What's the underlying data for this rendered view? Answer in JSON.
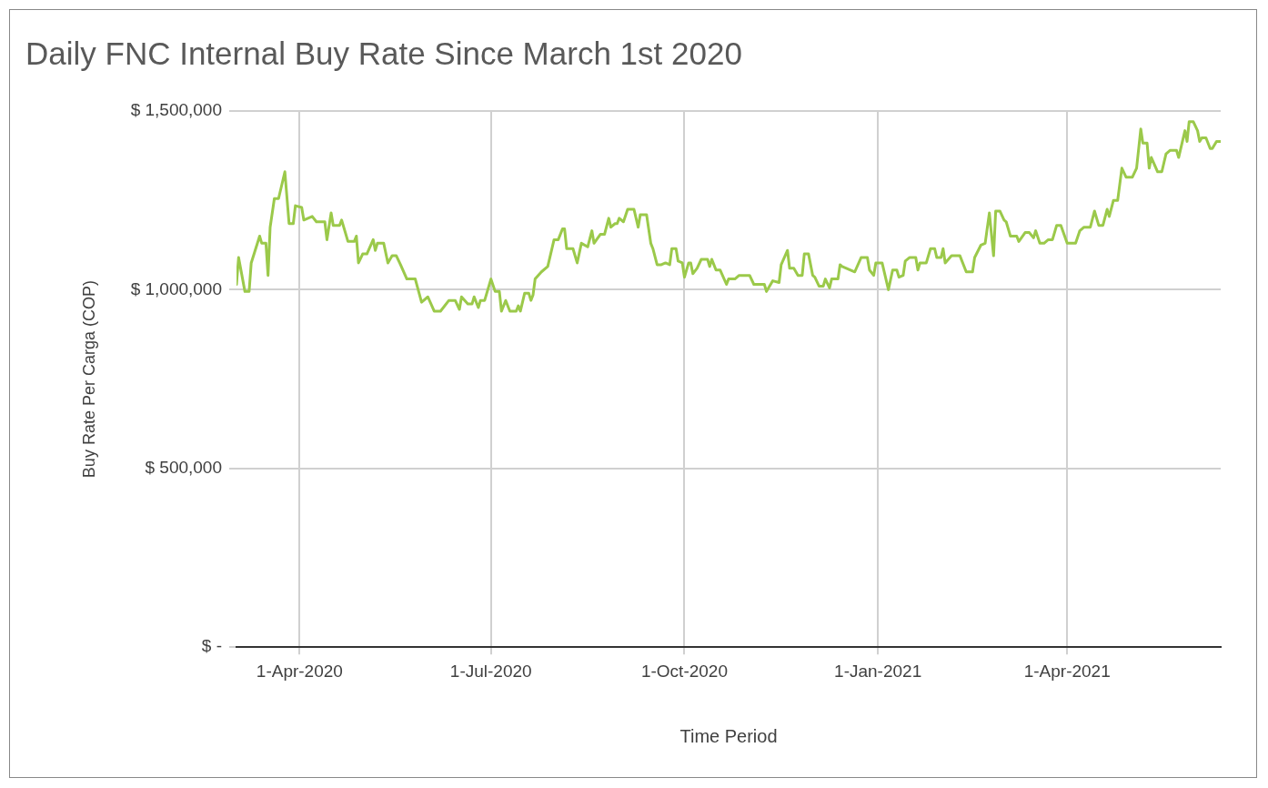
{
  "chart_data": {
    "type": "line",
    "title": "Daily FNC Internal Buy Rate Since March 1st 2020",
    "xlabel": "Time Period",
    "ylabel": "Buy Rate Per Carga (COP)",
    "x": [
      "2020-03-02",
      "2020-03-03",
      "2020-03-06",
      "2020-03-08",
      "2020-03-09",
      "2020-03-13",
      "2020-03-14",
      "2020-03-16",
      "2020-03-17",
      "2020-03-18",
      "2020-03-20",
      "2020-03-22",
      "2020-03-25",
      "2020-03-27",
      "2020-03-29",
      "2020-03-30",
      "2020-04-02",
      "2020-04-03",
      "2020-04-07",
      "2020-04-09",
      "2020-04-13",
      "2020-04-14",
      "2020-04-16",
      "2020-04-17",
      "2020-04-20",
      "2020-04-21",
      "2020-04-24",
      "2020-04-27",
      "2020-04-28",
      "2020-04-29",
      "2020-05-01",
      "2020-05-03",
      "2020-05-06",
      "2020-05-07",
      "2020-05-08",
      "2020-05-11",
      "2020-05-13",
      "2020-05-15",
      "2020-05-17",
      "2020-05-19",
      "2020-05-22",
      "2020-05-26",
      "2020-05-29",
      "2020-06-01",
      "2020-06-04",
      "2020-06-07",
      "2020-06-11",
      "2020-06-14",
      "2020-06-16",
      "2020-06-17",
      "2020-06-20",
      "2020-06-22",
      "2020-06-23",
      "2020-06-25",
      "2020-06-26",
      "2020-06-28",
      "2020-07-01",
      "2020-07-03",
      "2020-07-05",
      "2020-07-06",
      "2020-07-08",
      "2020-07-10",
      "2020-07-13",
      "2020-07-14",
      "2020-07-15",
      "2020-07-17",
      "2020-07-19",
      "2020-07-20",
      "2020-07-21",
      "2020-07-22",
      "2020-07-25",
      "2020-07-28",
      "2020-07-31",
      "2020-08-02",
      "2020-08-04",
      "2020-08-05",
      "2020-08-06",
      "2020-08-09",
      "2020-08-11",
      "2020-08-13",
      "2020-08-16",
      "2020-08-18",
      "2020-08-19",
      "2020-08-22",
      "2020-08-24",
      "2020-08-26",
      "2020-08-27",
      "2020-08-29",
      "2020-08-30",
      "2020-08-31",
      "2020-09-02",
      "2020-09-04",
      "2020-09-07",
      "2020-09-09",
      "2020-09-10",
      "2020-09-13",
      "2020-09-15",
      "2020-09-16",
      "2020-09-18",
      "2020-09-20",
      "2020-09-22",
      "2020-09-24",
      "2020-09-25",
      "2020-09-27",
      "2020-09-28",
      "2020-09-30",
      "2020-10-01",
      "2020-10-03",
      "2020-10-04",
      "2020-10-05",
      "2020-10-07",
      "2020-10-09",
      "2020-10-12",
      "2020-10-13",
      "2020-10-14",
      "2020-10-15",
      "2020-10-16",
      "2020-10-18",
      "2020-10-21",
      "2020-10-22",
      "2020-10-25",
      "2020-10-27",
      "2020-10-29",
      "2020-11-01",
      "2020-11-03",
      "2020-11-08",
      "2020-11-09",
      "2020-11-11",
      "2020-11-12",
      "2020-11-15",
      "2020-11-16",
      "2020-11-19",
      "2020-11-20",
      "2020-11-22",
      "2020-11-24",
      "2020-11-26",
      "2020-11-27",
      "2020-11-29",
      "2020-12-01",
      "2020-12-02",
      "2020-12-04",
      "2020-12-06",
      "2020-12-07",
      "2020-12-09",
      "2020-12-10",
      "2020-12-13",
      "2020-12-14",
      "2020-12-15",
      "2020-12-17",
      "2020-12-21",
      "2020-12-24",
      "2020-12-27",
      "2020-12-28",
      "2020-12-30",
      "2020-12-31",
      "2021-01-03",
      "2021-01-06",
      "2021-01-08",
      "2021-01-10",
      "2021-01-11",
      "2021-01-13",
      "2021-01-14",
      "2021-01-16",
      "2021-01-19",
      "2021-01-20",
      "2021-01-21",
      "2021-01-24",
      "2021-01-26",
      "2021-01-28",
      "2021-01-29",
      "2021-01-31",
      "2021-02-01",
      "2021-02-02",
      "2021-02-05",
      "2021-02-09",
      "2021-02-12",
      "2021-02-15",
      "2021-02-16",
      "2021-02-19",
      "2021-02-21",
      "2021-02-23",
      "2021-02-25",
      "2021-02-26",
      "2021-02-28",
      "2021-03-02",
      "2021-03-03",
      "2021-03-05",
      "2021-03-08",
      "2021-03-09",
      "2021-03-12",
      "2021-03-14",
      "2021-03-16",
      "2021-03-17",
      "2021-03-19",
      "2021-03-21",
      "2021-03-23",
      "2021-03-25",
      "2021-03-27",
      "2021-03-29",
      "2021-04-01",
      "2021-04-05",
      "2021-04-07",
      "2021-04-09",
      "2021-04-12",
      "2021-04-14",
      "2021-04-16",
      "2021-04-18",
      "2021-04-20",
      "2021-04-21",
      "2021-04-23",
      "2021-04-25",
      "2021-04-27",
      "2021-04-29",
      "2021-05-02",
      "2021-05-04",
      "2021-05-06",
      "2021-05-07",
      "2021-05-09",
      "2021-05-10",
      "2021-05-11",
      "2021-05-14",
      "2021-05-16",
      "2021-05-18",
      "2021-05-20",
      "2021-05-23",
      "2021-05-24",
      "2021-05-27",
      "2021-05-28",
      "2021-05-29",
      "2021-05-31",
      "2021-06-02",
      "2021-06-03",
      "2021-06-04",
      "2021-06-06",
      "2021-06-08",
      "2021-06-09",
      "2021-06-11",
      "2021-06-13"
    ],
    "series": [
      {
        "color": "#9bc94a",
        "values": [
          1015000,
          1090000,
          995000,
          995000,
          1075000,
          1150000,
          1130000,
          1130000,
          1040000,
          1175000,
          1255000,
          1255000,
          1330000,
          1185000,
          1185000,
          1235000,
          1230000,
          1195000,
          1205000,
          1190000,
          1190000,
          1140000,
          1215000,
          1180000,
          1180000,
          1195000,
          1135000,
          1135000,
          1150000,
          1075000,
          1100000,
          1100000,
          1140000,
          1110000,
          1130000,
          1130000,
          1075000,
          1095000,
          1095000,
          1070000,
          1030000,
          1030000,
          965000,
          980000,
          940000,
          940000,
          970000,
          970000,
          945000,
          980000,
          960000,
          960000,
          980000,
          950000,
          970000,
          970000,
          1030000,
          995000,
          995000,
          940000,
          970000,
          940000,
          940000,
          955000,
          940000,
          990000,
          990000,
          970000,
          985000,
          1030000,
          1050000,
          1065000,
          1140000,
          1140000,
          1170000,
          1170000,
          1115000,
          1115000,
          1075000,
          1130000,
          1120000,
          1165000,
          1130000,
          1155000,
          1155000,
          1200000,
          1175000,
          1185000,
          1185000,
          1200000,
          1190000,
          1225000,
          1225000,
          1175000,
          1210000,
          1210000,
          1130000,
          1115000,
          1070000,
          1070000,
          1075000,
          1070000,
          1115000,
          1115000,
          1080000,
          1075000,
          1035000,
          1075000,
          1075000,
          1045000,
          1060000,
          1085000,
          1085000,
          1065000,
          1085000,
          1070000,
          1055000,
          1055000,
          1015000,
          1030000,
          1030000,
          1040000,
          1040000,
          1040000,
          1015000,
          1015000,
          995000,
          1015000,
          1025000,
          1020000,
          1070000,
          1110000,
          1060000,
          1060000,
          1040000,
          1040000,
          1100000,
          1100000,
          1040000,
          1035000,
          1010000,
          1010000,
          1030000,
          1005000,
          1030000,
          1030000,
          1070000,
          1065000,
          1060000,
          1050000,
          1090000,
          1090000,
          1055000,
          1040000,
          1075000,
          1075000,
          1000000,
          1055000,
          1055000,
          1035000,
          1040000,
          1080000,
          1090000,
          1090000,
          1055000,
          1075000,
          1075000,
          1115000,
          1115000,
          1090000,
          1090000,
          1115000,
          1075000,
          1095000,
          1095000,
          1050000,
          1050000,
          1090000,
          1125000,
          1130000,
          1215000,
          1095000,
          1220000,
          1220000,
          1195000,
          1190000,
          1150000,
          1150000,
          1135000,
          1160000,
          1160000,
          1145000,
          1165000,
          1130000,
          1130000,
          1140000,
          1140000,
          1180000,
          1180000,
          1130000,
          1130000,
          1165000,
          1175000,
          1175000,
          1220000,
          1180000,
          1180000,
          1225000,
          1205000,
          1250000,
          1250000,
          1340000,
          1315000,
          1315000,
          1340000,
          1450000,
          1410000,
          1410000,
          1340000,
          1370000,
          1330000,
          1330000,
          1380000,
          1390000,
          1390000,
          1370000,
          1445000,
          1415000,
          1470000,
          1470000,
          1445000,
          1415000,
          1425000,
          1425000,
          1395000,
          1395000,
          1415000,
          1415000
        ]
      }
    ],
    "xlim": [
      "2020-03-02",
      "2021-06-13"
    ],
    "xticks": [
      {
        "value": "2020-04-01",
        "label": "1-Apr-2020"
      },
      {
        "value": "2020-07-01",
        "label": "1-Jul-2020"
      },
      {
        "value": "2020-10-01",
        "label": "1-Oct-2020"
      },
      {
        "value": "2021-01-01",
        "label": "1-Jan-2021"
      },
      {
        "value": "2021-04-01",
        "label": "1-Apr-2021"
      }
    ],
    "ylim": [
      0,
      1500000
    ],
    "yticks": [
      {
        "value": 0,
        "label": "$ -"
      },
      {
        "value": 500000,
        "label": "$ 500,000"
      },
      {
        "value": 1000000,
        "label": "$ 1,000,000"
      },
      {
        "value": 1500000,
        "label": "$ 1,500,000"
      }
    ],
    "grid": true,
    "marker": "none",
    "line_style": "solid"
  }
}
